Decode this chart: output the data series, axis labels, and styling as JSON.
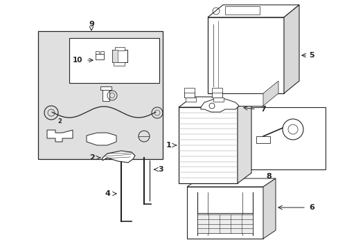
{
  "background_color": "#ffffff",
  "line_color": "#222222",
  "shade_gray": "#e0e0e0",
  "fig_w": 4.89,
  "fig_h": 3.6,
  "dpi": 100
}
